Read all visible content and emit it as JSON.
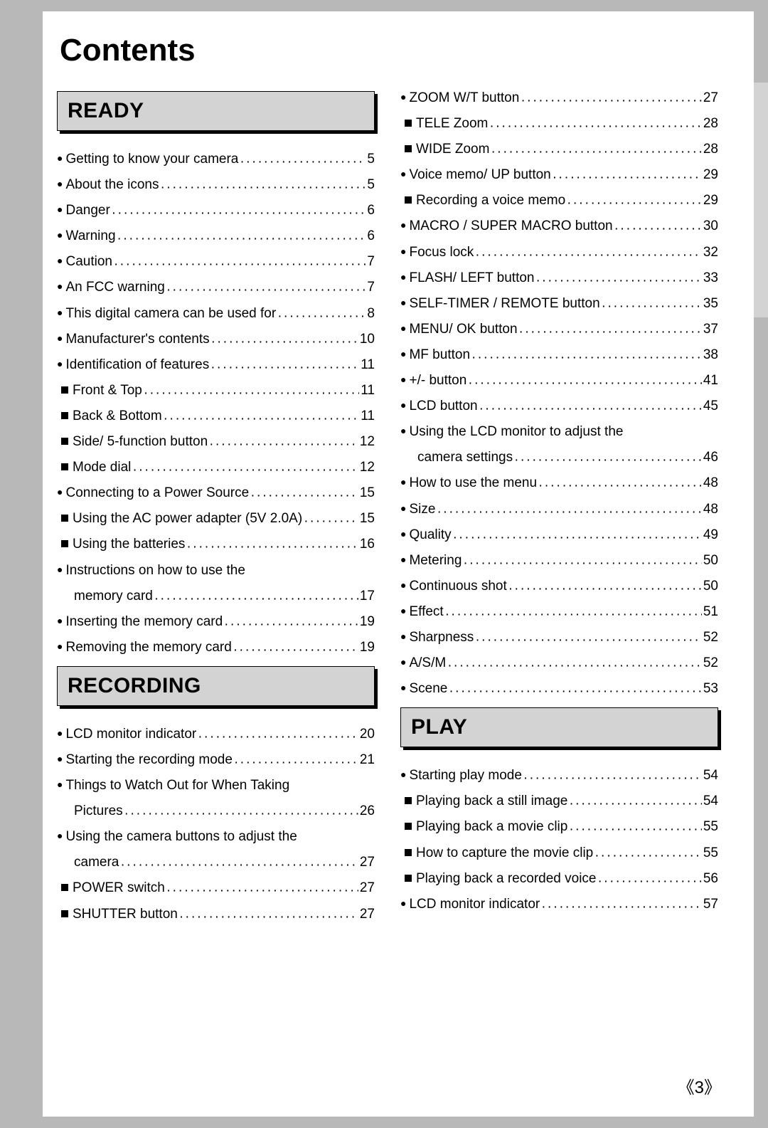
{
  "title": "Contents",
  "page_number": "3",
  "columns": [
    [
      {
        "type": "heading",
        "text": "READY"
      },
      {
        "type": "item",
        "bullet": "round",
        "label": "Getting to know your camera",
        "page": "5"
      },
      {
        "type": "item",
        "bullet": "round",
        "label": "About the icons",
        "page": "5"
      },
      {
        "type": "item",
        "bullet": "round",
        "label": "Danger",
        "page": "6"
      },
      {
        "type": "item",
        "bullet": "round",
        "label": "Warning",
        "page": "6"
      },
      {
        "type": "item",
        "bullet": "round",
        "label": "Caution",
        "page": "7"
      },
      {
        "type": "item",
        "bullet": "round",
        "label": "An FCC warning",
        "page": "7"
      },
      {
        "type": "item",
        "bullet": "round",
        "label": "This digital camera can be used for",
        "page": "8"
      },
      {
        "type": "item",
        "bullet": "round",
        "label": "Manufacturer's contents",
        "page": "10"
      },
      {
        "type": "item",
        "bullet": "round",
        "label": "Identification of features",
        "page": "11"
      },
      {
        "type": "item",
        "bullet": "square",
        "label": "Front & Top",
        "page": "11"
      },
      {
        "type": "item",
        "bullet": "square",
        "label": "Back & Bottom",
        "page": "11"
      },
      {
        "type": "item",
        "bullet": "square",
        "label": "Side/ 5-function button",
        "page": "12"
      },
      {
        "type": "item",
        "bullet": "square",
        "label": "Mode dial",
        "page": "12"
      },
      {
        "type": "item",
        "bullet": "round",
        "label": "Connecting to a Power Source",
        "page": "15"
      },
      {
        "type": "item",
        "bullet": "square",
        "label": "Using the AC power adapter (5V 2.0A)",
        "page": "15"
      },
      {
        "type": "item",
        "bullet": "square",
        "label": "Using the batteries",
        "page": "16"
      },
      {
        "type": "item",
        "bullet": "round",
        "label": "Instructions on how to use the",
        "wrap": true
      },
      {
        "type": "continuation",
        "label": "memory card",
        "page": "17"
      },
      {
        "type": "item",
        "bullet": "round",
        "label": "Inserting the memory card",
        "page": "19"
      },
      {
        "type": "item",
        "bullet": "round",
        "label": "Removing the memory card",
        "page": "19"
      },
      {
        "type": "heading",
        "text": "RECORDING"
      },
      {
        "type": "item",
        "bullet": "round",
        "label": "LCD monitor indicator",
        "page": "20"
      },
      {
        "type": "item",
        "bullet": "round",
        "label": "Starting the recording mode",
        "page": "21"
      },
      {
        "type": "item",
        "bullet": "round",
        "label": "Things to Watch Out for When Taking",
        "wrap": true
      },
      {
        "type": "continuation",
        "label": "Pictures",
        "page": "26"
      },
      {
        "type": "item",
        "bullet": "round",
        "label": "Using the camera buttons to adjust the",
        "wrap": true
      },
      {
        "type": "continuation",
        "label": "camera",
        "page": "27"
      },
      {
        "type": "item",
        "bullet": "square",
        "label": "POWER switch",
        "page": "27"
      },
      {
        "type": "item",
        "bullet": "square",
        "label": "SHUTTER button",
        "page": "27"
      }
    ],
    [
      {
        "type": "item",
        "bullet": "round",
        "label": "ZOOM W/T button",
        "page": "27"
      },
      {
        "type": "item",
        "bullet": "square",
        "label": "TELE Zoom",
        "page": "28"
      },
      {
        "type": "item",
        "bullet": "square",
        "label": "WIDE Zoom",
        "page": "28"
      },
      {
        "type": "item",
        "bullet": "round",
        "label": "Voice memo/ UP button",
        "page": "29"
      },
      {
        "type": "item",
        "bullet": "square",
        "label": "Recording a voice memo",
        "page": "29"
      },
      {
        "type": "item",
        "bullet": "round",
        "label": "MACRO / SUPER MACRO button",
        "page": "30"
      },
      {
        "type": "item",
        "bullet": "round",
        "label": "Focus lock",
        "page": "32"
      },
      {
        "type": "item",
        "bullet": "round",
        "label": "FLASH/ LEFT button",
        "page": "33"
      },
      {
        "type": "item",
        "bullet": "round",
        "label": "SELF-TIMER / REMOTE button",
        "page": "35"
      },
      {
        "type": "item",
        "bullet": "round",
        "label": "MENU/ OK button",
        "page": "37"
      },
      {
        "type": "item",
        "bullet": "round",
        "label": "MF button",
        "page": "38"
      },
      {
        "type": "item",
        "bullet": "round",
        "label": "+/- button",
        "page": "41"
      },
      {
        "type": "item",
        "bullet": "round",
        "label": "LCD button",
        "page": "45"
      },
      {
        "type": "item",
        "bullet": "round",
        "label": "Using the LCD monitor to adjust the",
        "wrap": true
      },
      {
        "type": "continuation",
        "label": "camera settings",
        "page": "46"
      },
      {
        "type": "item",
        "bullet": "round",
        "label": "How to use the menu",
        "page": "48"
      },
      {
        "type": "item",
        "bullet": "round",
        "label": "Size",
        "page": "48"
      },
      {
        "type": "item",
        "bullet": "round",
        "label": "Quality",
        "page": "49"
      },
      {
        "type": "item",
        "bullet": "round",
        "label": "Metering",
        "page": "50"
      },
      {
        "type": "item",
        "bullet": "round",
        "label": "Continuous shot",
        "page": "50"
      },
      {
        "type": "item",
        "bullet": "round",
        "label": "Effect",
        "page": "51"
      },
      {
        "type": "item",
        "bullet": "round",
        "label": "Sharpness",
        "page": "52"
      },
      {
        "type": "item",
        "bullet": "round",
        "label": "A/S/M",
        "page": "52"
      },
      {
        "type": "item",
        "bullet": "round",
        "label": "Scene",
        "page": "53"
      },
      {
        "type": "heading",
        "text": "PLAY"
      },
      {
        "type": "item",
        "bullet": "round",
        "label": "Starting play mode",
        "page": "54"
      },
      {
        "type": "item",
        "bullet": "square",
        "label": "Playing back a still image",
        "page": "54"
      },
      {
        "type": "item",
        "bullet": "square",
        "label": "Playing back a movie clip",
        "page": "55"
      },
      {
        "type": "item",
        "bullet": "square",
        "label": "How to capture the movie clip",
        "page": "55"
      },
      {
        "type": "item",
        "bullet": "square",
        "label": "Playing back a recorded voice",
        "page": "56"
      },
      {
        "type": "item",
        "bullet": "round",
        "label": "LCD monitor indicator",
        "page": "57"
      }
    ]
  ]
}
